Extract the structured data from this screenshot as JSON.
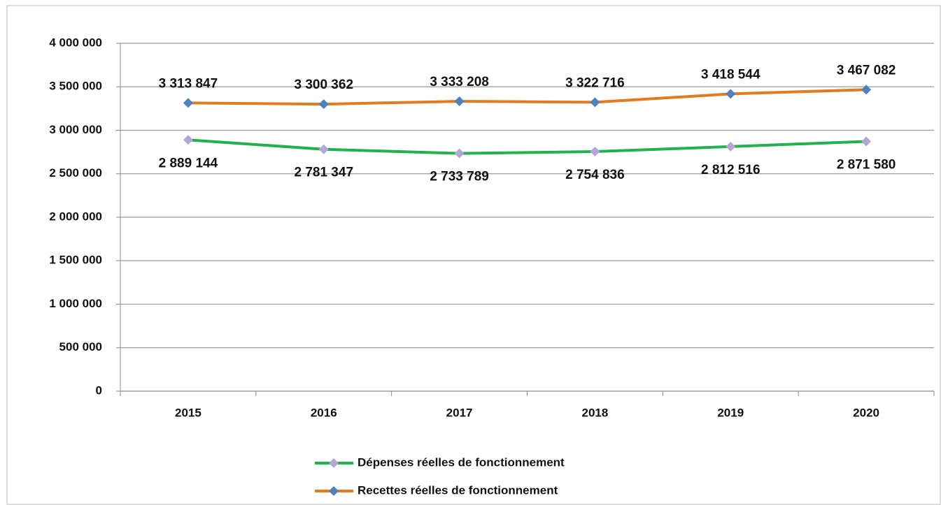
{
  "chart_data": {
    "type": "line",
    "categories": [
      "2015",
      "2016",
      "2017",
      "2018",
      "2019",
      "2020"
    ],
    "series": [
      {
        "name": "Dépenses réelles de fonctionnement",
        "color": "#22b14c",
        "marker_color": "#b4a7d6",
        "values": [
          2889144,
          2781347,
          2733789,
          2754836,
          2812516,
          2871580
        ],
        "value_labels": [
          "2 889 144",
          "2 781 347",
          "2 733 789",
          "2 754 836",
          "2 812 516",
          "2 871 580"
        ]
      },
      {
        "name": "Recettes réelles de fonctionnement",
        "color": "#e07b22",
        "marker_color": "#4f81bd",
        "values": [
          3313847,
          3300362,
          3333208,
          3322716,
          3418544,
          3467082
        ],
        "value_labels": [
          "3 313 847",
          "3 300 362",
          "3 333 208",
          "3 322 716",
          "3 418 544",
          "3 467 082"
        ]
      }
    ],
    "ylim": [
      0,
      4000000
    ],
    "yticks": [
      0,
      {
        "value": 500000,
        "label": "500 000"
      },
      {
        "value": 1000000,
        "label": "1 000 000"
      },
      {
        "value": 1500000,
        "label": "1 500 000"
      },
      {
        "value": 2000000,
        "label": "2 000 000"
      },
      {
        "value": 2500000,
        "label": "2 500 000"
      },
      {
        "value": 3000000,
        "label": "3 000 000"
      },
      {
        "value": 3500000,
        "label": "3 500 000"
      },
      {
        "value": 4000000,
        "label": "4 000 000"
      }
    ],
    "grid": true,
    "legend": "bottom"
  }
}
